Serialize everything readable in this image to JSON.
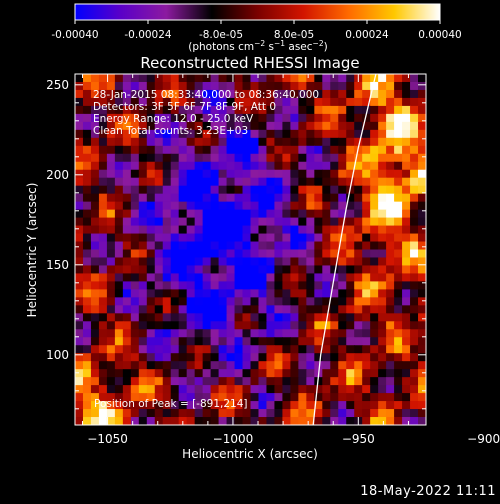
{
  "colorbar": {
    "ticks": [
      "-0.00040",
      "-0.00024",
      "-8.0e-05",
      "8.0e-05",
      "0.00024",
      "0.00040"
    ],
    "tick_values": [
      -0.0004,
      -0.00024,
      -8e-05,
      8e-05,
      0.00024,
      0.0004
    ],
    "range": [
      -0.0004,
      0.0004
    ],
    "stops": [
      "#0000ff",
      "#5a00c8",
      "#8c1aa0",
      "#000000",
      "#7a0000",
      "#d21400",
      "#ff6a00",
      "#ffc800",
      "#ffffff"
    ]
  },
  "chart_data": {
    "type": "heatmap",
    "title": "Reconstructed RHESSI Image",
    "xlabel": "Heliocentric X (arcsec)",
    "ylabel": "Heliocentric Y (arcsec)",
    "xlim": [
      -1063,
      -923
    ],
    "ylim": [
      61,
      256
    ],
    "x_ticks": [
      -1050,
      -1000,
      -950,
      -900
    ],
    "y_ticks": [
      100,
      150,
      200,
      250
    ],
    "x_tick_labels": [
      "−1050",
      "−1000",
      "−950",
      "−900"
    ],
    "y_tick_labels": [
      "100",
      "150",
      "200",
      "250"
    ],
    "annotations": [
      "28-Jan-2015 08:33:40.000 to 08:36:40.000",
      "Detectors: 3F 5F 6F 7F 8F 9F, Att 0",
      "Energy Range: 12.0 - 25.0 keV",
      "Clean    Total counts: 3.23E+03"
    ],
    "peak_label": "Position of Peak = [-891,214]",
    "peak": [
      -891,
      214
    ],
    "limb_curve": [
      [
        -968,
        61
      ],
      [
        -965,
        100
      ],
      [
        -960,
        140
      ],
      [
        -955,
        180
      ],
      [
        -950,
        215
      ],
      [
        -943,
        256
      ]
    ]
  },
  "footer": {
    "timestamp": "18-May-2022 11:11"
  }
}
